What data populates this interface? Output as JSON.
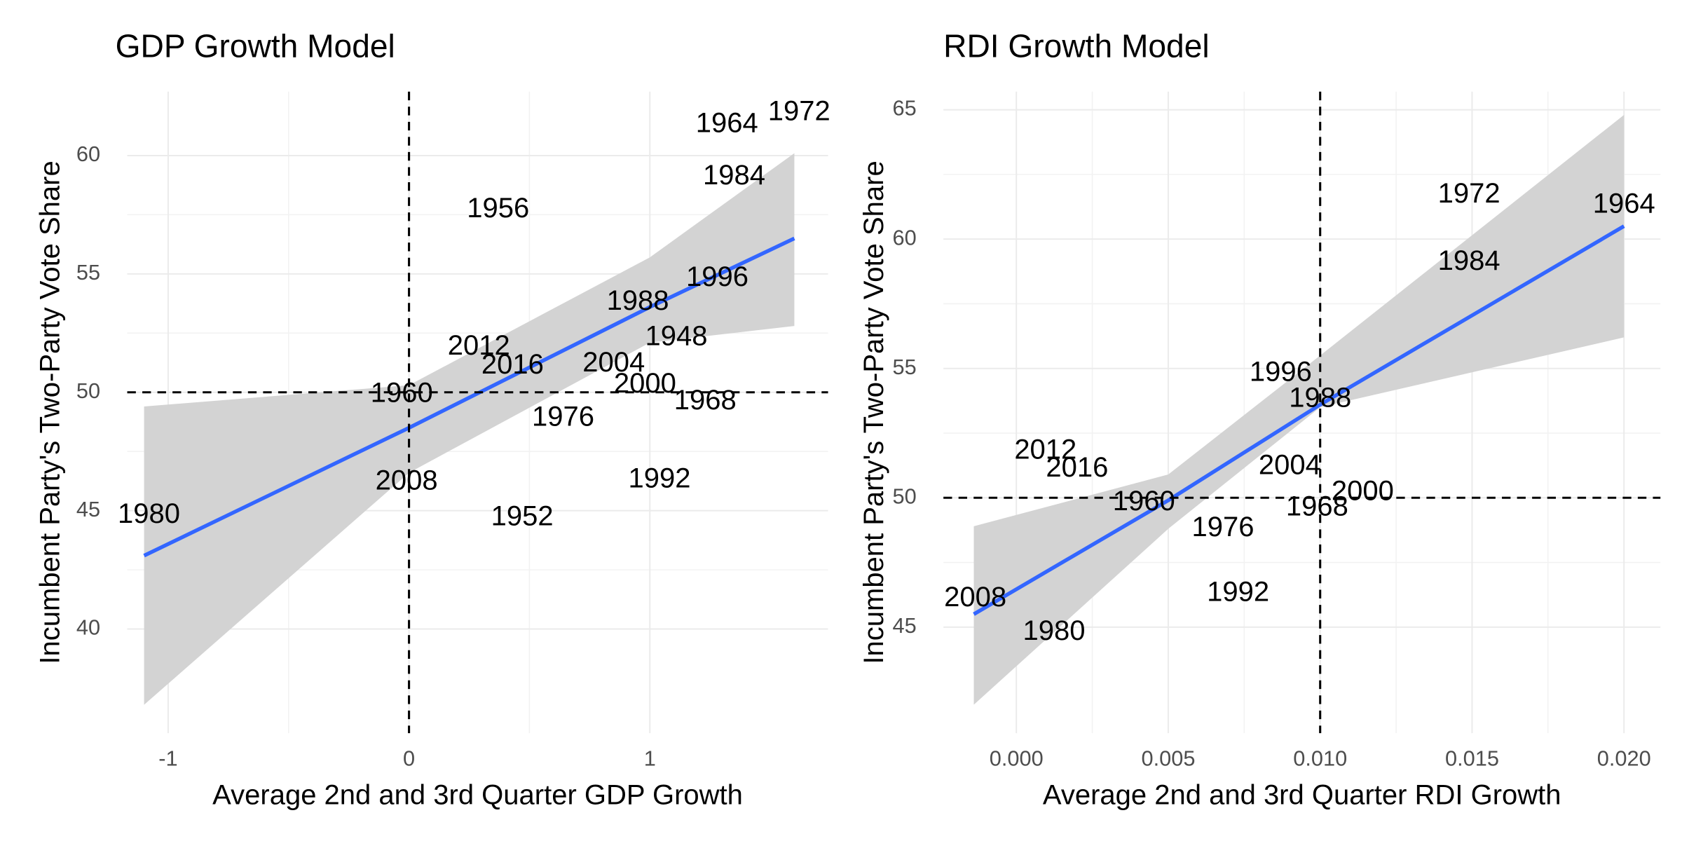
{
  "chart_data": [
    {
      "type": "scatter",
      "title": "GDP Growth Model",
      "x_label": "Average 2nd and 3rd Quarter GDP Growth",
      "y_label": "Incumbent Party's Two-Party Vote Share",
      "labels": [
        "1980",
        "2008",
        "1960",
        "2012",
        "2016",
        "1956",
        "1952",
        "1976",
        "2004",
        "1988",
        "2000",
        "1992",
        "1948",
        "1968",
        "1996",
        "1984",
        "1964",
        "1972"
      ],
      "x": [
        -1.08,
        -0.01,
        -0.03,
        0.29,
        0.43,
        0.37,
        0.47,
        0.64,
        0.85,
        0.95,
        0.98,
        1.04,
        1.11,
        1.23,
        1.28,
        1.35,
        1.32,
        1.62
      ],
      "y": [
        44.8,
        46.2,
        49.9,
        51.9,
        51.1,
        57.7,
        44.7,
        48.9,
        51.2,
        53.8,
        50.3,
        46.3,
        52.3,
        49.6,
        54.8,
        59.1,
        61.3,
        61.8
      ],
      "fit": {
        "x": [
          -1.1,
          0,
          1,
          1.6
        ],
        "y": [
          43.1,
          48.5,
          53.6,
          56.5
        ],
        "lower": [
          36.8,
          46.6,
          52.1,
          52.8
        ],
        "upper": [
          49.4,
          50.3,
          55.7,
          60.1
        ],
        "color": "#3366ff",
        "band_color": "#d3d3d3"
      },
      "hline": 50,
      "vline": 0,
      "xlim": [
        -1.17,
        1.74
      ],
      "ylim": [
        35.6,
        62.7
      ],
      "xticks": [
        -1,
        0,
        1
      ],
      "yticks": [
        40,
        45,
        50,
        55,
        60
      ],
      "grid": true
    },
    {
      "type": "scatter",
      "title": "RDI Growth Model",
      "x_label": "Average 2nd and 3rd Quarter RDI Growth",
      "y_label": "Incumbent Party's Two-Party Vote Share",
      "labels": [
        "2008",
        "1980",
        "2012",
        "2016",
        "1960",
        "1976",
        "1992",
        "2004",
        "1996",
        "1988",
        "1968",
        "2000",
        "1972",
        "1984",
        "1964"
      ],
      "x": [
        -0.00135,
        0.00124,
        0.00096,
        0.002,
        0.0042,
        0.0068,
        0.0073,
        0.009,
        0.0087,
        0.01,
        0.0099,
        0.0114,
        0.0149,
        0.0149,
        0.02
      ],
      "y": [
        46.1,
        44.8,
        51.8,
        51.1,
        49.8,
        48.8,
        46.3,
        51.2,
        54.8,
        53.8,
        49.6,
        50.2,
        61.7,
        59.1,
        61.3
      ],
      "fit": {
        "x": [
          -0.0014,
          0.005,
          0.01,
          0.02
        ],
        "y": [
          45.5,
          49.9,
          53.6,
          60.5
        ],
        "lower": [
          42.0,
          48.8,
          53.5,
          56.2
        ],
        "upper": [
          48.9,
          50.9,
          55.5,
          64.8
        ],
        "color": "#3366ff",
        "band_color": "#d3d3d3"
      },
      "hline": 50,
      "vline": 0.01,
      "xlim": [
        -0.0024,
        0.0212
      ],
      "ylim": [
        40.9,
        65.7
      ],
      "xticks": [
        {
          "value": 0,
          "label": "0.000"
        },
        {
          "value": 0.005,
          "label": "0.005"
        },
        {
          "value": 0.01,
          "label": "0.010"
        },
        {
          "value": 0.015,
          "label": "0.015"
        },
        {
          "value": 0.02,
          "label": "0.020"
        }
      ],
      "yticks": [
        45,
        50,
        55,
        60,
        65
      ],
      "grid": true
    }
  ]
}
